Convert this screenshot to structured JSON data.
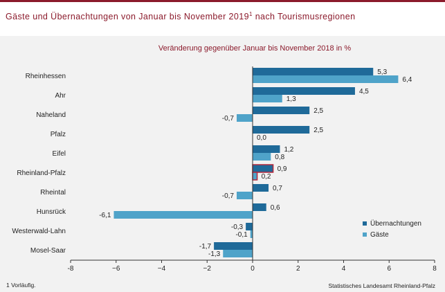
{
  "title": "Gäste und Übernachtungen von Januar bis November 2019",
  "title_sup": "1",
  "title_suffix": " nach Tourismusregionen",
  "footnote": "1 Vorläufig.",
  "source": "Statistisches Landesamt Rheinland-Pfalz",
  "colors": {
    "title": "#8b1a2b",
    "overnight": "#1f6a99",
    "guests": "#4fa3c9",
    "highlight_outline": "#b3263a",
    "background": "#f2f2f2"
  },
  "chart_data": {
    "type": "bar",
    "orientation": "horizontal",
    "subtitle": "Veränderung gegenüber Januar bis November 2018 in %",
    "categories": [
      "Rheinhessen",
      "Ahr",
      "Naheland",
      "Pfalz",
      "Eifel",
      "Rheinland-Pfalz",
      "Rheintal",
      "Hunsrück",
      "Westerwald-Lahn",
      "Mosel-Saar"
    ],
    "series": [
      {
        "name": "Übernachtungen",
        "values": [
          5.3,
          4.5,
          2.5,
          2.5,
          1.2,
          0.9,
          0.7,
          0.6,
          -0.3,
          -1.7
        ],
        "labels": [
          "5,3",
          "4,5",
          "2,5",
          "2,5",
          "1,2",
          "0,9",
          "0,7",
          "0,6",
          "-0,3",
          "-1,7"
        ]
      },
      {
        "name": "Gäste",
        "values": [
          6.4,
          1.3,
          -0.7,
          0.0,
          0.8,
          0.2,
          -0.7,
          -6.1,
          -0.1,
          -1.3
        ],
        "labels": [
          "6,4",
          "1,3",
          "-0,7",
          "0,0",
          "0,8",
          "0,2",
          "-0,7",
          "-6,1",
          "-0,1",
          "-1,3"
        ]
      }
    ],
    "highlight_category": "Rheinland-Pfalz",
    "xlim": [
      -8,
      8
    ],
    "xticks": [
      -8,
      -6,
      -4,
      -2,
      0,
      2,
      4,
      6,
      8
    ],
    "xtick_labels": [
      "-8",
      "−6",
      "−4",
      "−2",
      "0",
      "2",
      "4",
      "6",
      "8"
    ],
    "grid": false,
    "legend_position": "bottom-right"
  }
}
